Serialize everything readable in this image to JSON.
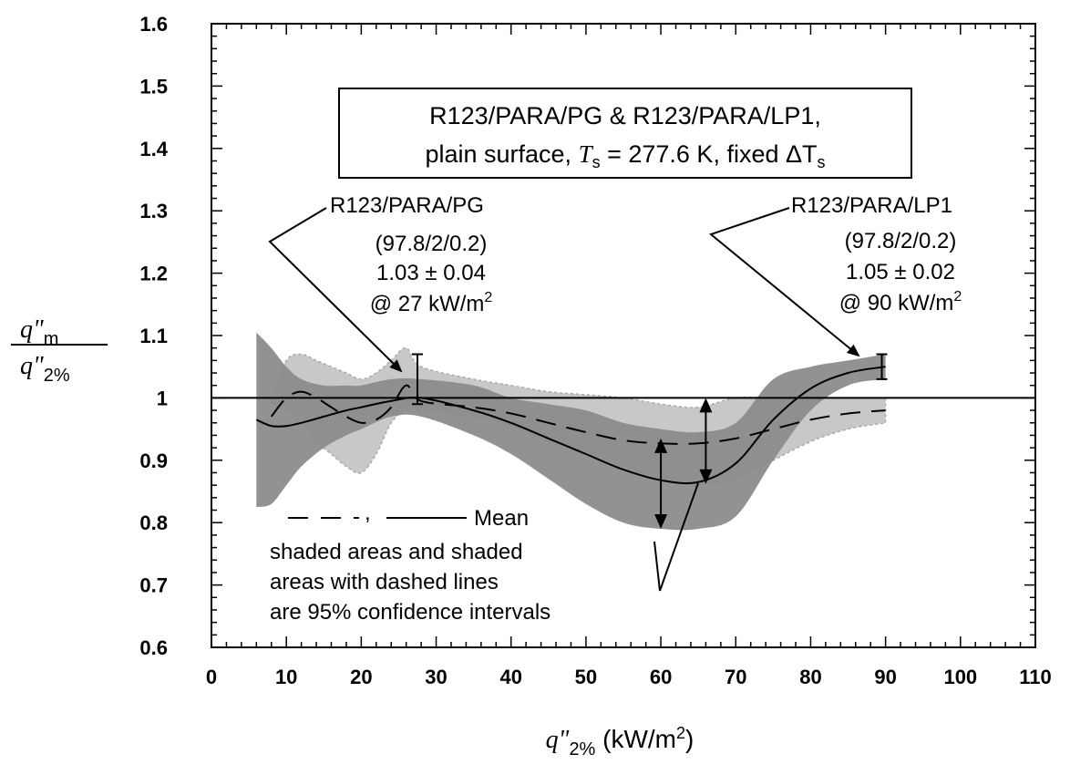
{
  "chart_data": {
    "type": "line",
    "xlabel": {
      "main": "q\"",
      "sub": "2%",
      "units": " (kW/m",
      "sup": "2",
      "end": ")"
    },
    "ylabel": {
      "num_main": "q\"",
      "num_sub": "m",
      "den_main": "q\"",
      "den_sub": "2%"
    },
    "xlim": [
      0,
      110
    ],
    "ylim": [
      0.6,
      1.6
    ],
    "x_ticks": [
      0,
      10,
      20,
      30,
      40,
      50,
      60,
      70,
      80,
      90,
      100,
      110
    ],
    "x_tick_labels": [
      "0",
      "10",
      "20",
      "30",
      "40",
      "50",
      "60",
      "70",
      "80",
      "90",
      "100",
      "110"
    ],
    "y_ticks": [
      0.6,
      0.7,
      0.8,
      0.9,
      1.0,
      1.1,
      1.2,
      1.3,
      1.4,
      1.5,
      1.6
    ],
    "y_tick_labels": [
      "0.6",
      "0.7",
      "0.8",
      "0.9",
      "1",
      "1.1",
      "1.2",
      "1.3",
      "1.4",
      "1.5",
      "1.6"
    ],
    "grid": false,
    "reference_line_y": 1.0,
    "title_box": {
      "line1": "R123/PARA/PG & R123/PARA/LP1,",
      "line2_pre": "plain surface, ",
      "line2_var": "T",
      "line2_sub": "s",
      "line2_mid": " = 277.6 K, fixed ",
      "line2_delta": "ΔT",
      "line2_sub2": "s"
    },
    "annotations": {
      "pg": {
        "name": "R123/PARA/PG",
        "composition": "(97.8/2/0.2)",
        "value": "1.03 ± 0.04",
        "at": "@ 27 kW/m",
        "sup": "2"
      },
      "lp1": {
        "name": "R123/PARA/LP1",
        "composition": "(97.8/2/0.2)",
        "value": "1.05 ± 0.02",
        "at": "@ 90 kW/m",
        "sup": "2"
      },
      "legend": {
        "mean_label": "Mean",
        "separator": ",",
        "note_line1": "shaded areas and shaded",
        "note_line2": "areas with dashed lines",
        "note_line3": "are 95% confidence intervals"
      }
    },
    "series": [
      {
        "name": "R123/PARA/PG",
        "style": "dashed",
        "x": [
          8,
          10,
          12,
          14,
          16,
          18,
          20,
          22,
          24,
          26,
          28,
          35,
          40,
          45,
          50,
          55,
          60,
          65,
          70,
          75,
          80,
          85,
          90
        ],
        "y": [
          0.97,
          1.0,
          1.01,
          1.0,
          0.985,
          0.97,
          0.96,
          0.965,
          0.985,
          1.02,
          0.995,
          0.985,
          0.975,
          0.96,
          0.945,
          0.932,
          0.927,
          0.927,
          0.935,
          0.95,
          0.965,
          0.975,
          0.98
        ],
        "ci_lower": [
          0.99,
          0.98,
          0.96,
          0.93,
          0.91,
          0.89,
          0.88,
          0.91,
          0.96,
          0.98,
          0.98,
          0.97,
          0.955,
          0.93,
          0.91,
          0.89,
          0.87,
          0.86,
          0.87,
          0.9,
          0.93,
          0.95,
          0.96
        ],
        "ci_upper": [
          1.0,
          1.06,
          1.07,
          1.06,
          1.05,
          1.04,
          1.03,
          1.04,
          1.06,
          1.08,
          1.05,
          1.03,
          1.02,
          1.01,
          1.005,
          1.0,
          0.99,
          0.985,
          1.0,
          1.0,
          1.0,
          1.0,
          1.0
        ],
        "color": "#c8c8c8"
      },
      {
        "name": "R123/PARA/LP1",
        "style": "solid",
        "x": [
          6,
          8,
          10,
          12,
          15,
          18,
          20,
          24,
          28,
          35,
          40,
          45,
          50,
          55,
          60,
          65,
          70,
          75,
          80,
          85,
          90
        ],
        "y": [
          0.965,
          0.955,
          0.955,
          0.96,
          0.97,
          0.98,
          0.985,
          0.995,
          1.0,
          0.98,
          0.96,
          0.935,
          0.91,
          0.885,
          0.868,
          0.865,
          0.895,
          0.965,
          1.015,
          1.04,
          1.05
        ],
        "ci_lower": [
          0.825,
          0.83,
          0.86,
          0.89,
          0.92,
          0.94,
          0.95,
          0.97,
          0.97,
          0.94,
          0.91,
          0.87,
          0.83,
          0.8,
          0.79,
          0.79,
          0.81,
          0.9,
          0.98,
          1.02,
          1.03
        ],
        "ci_upper": [
          1.105,
          1.08,
          1.05,
          1.03,
          1.02,
          1.02,
          1.02,
          1.03,
          1.03,
          1.02,
          1.0,
          0.99,
          0.98,
          0.96,
          0.95,
          0.945,
          0.96,
          1.03,
          1.05,
          1.06,
          1.07
        ],
        "color": "#8c8c8c"
      }
    ],
    "error_bars": [
      {
        "x": 27.5,
        "y": 1.03,
        "err": 0.04
      },
      {
        "x": 89.5,
        "y": 1.05,
        "err": 0.02
      }
    ],
    "interval_arrows": [
      {
        "x": 60,
        "lower": 0.79,
        "upper": 0.935
      },
      {
        "x": 66,
        "lower": 0.862,
        "upper": 1.0
      }
    ]
  }
}
